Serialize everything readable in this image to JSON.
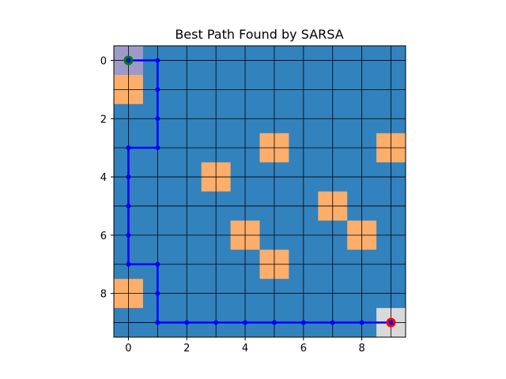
{
  "chart_data": {
    "type": "heatmap",
    "title": "Best Path Found by SARSA",
    "xlabel": "",
    "ylabel": "",
    "grid_size": [
      10,
      10
    ],
    "xlim": [
      -0.5,
      9.5
    ],
    "ylim": [
      9.5,
      -0.5
    ],
    "x_ticks": [
      0,
      2,
      4,
      6,
      8
    ],
    "y_ticks": [
      0,
      2,
      4,
      6,
      8
    ],
    "grid": true,
    "colors": {
      "free": "#3282bd",
      "obstacle": "#fdae6b",
      "start_cell": "#9e9ac8",
      "goal_cell": "#d9d9d9",
      "path": "#0000ff",
      "start_marker": "#008000",
      "goal_marker": "#ff0000"
    },
    "start": [
      0,
      0
    ],
    "goal": [
      9,
      9
    ],
    "obstacles": [
      [
        0,
        1
      ],
      [
        5,
        3
      ],
      [
        9,
        3
      ],
      [
        3,
        4
      ],
      [
        7,
        5
      ],
      [
        4,
        6
      ],
      [
        8,
        6
      ],
      [
        5,
        7
      ],
      [
        0,
        8
      ]
    ],
    "path": [
      [
        0,
        0
      ],
      [
        1,
        0
      ],
      [
        1,
        1
      ],
      [
        1,
        2
      ],
      [
        1,
        3
      ],
      [
        0,
        3
      ],
      [
        0,
        4
      ],
      [
        0,
        5
      ],
      [
        0,
        6
      ],
      [
        0,
        7
      ],
      [
        1,
        7
      ],
      [
        1,
        8
      ],
      [
        1,
        9
      ],
      [
        2,
        9
      ],
      [
        3,
        9
      ],
      [
        4,
        9
      ],
      [
        5,
        9
      ],
      [
        6,
        9
      ],
      [
        7,
        9
      ],
      [
        8,
        9
      ],
      [
        9,
        9
      ]
    ]
  }
}
